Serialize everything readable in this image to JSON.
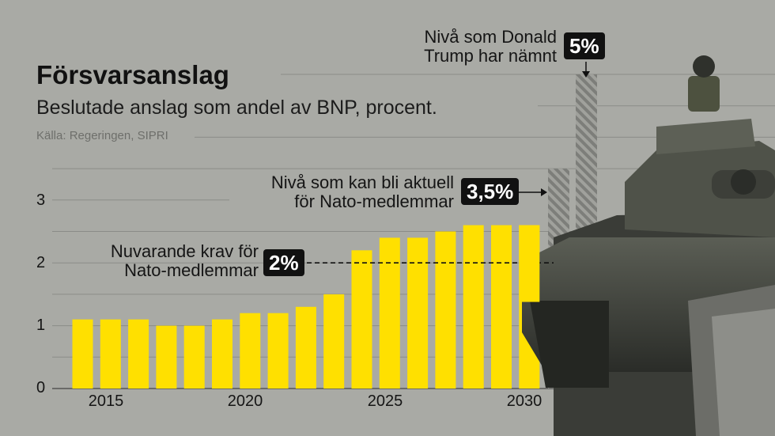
{
  "title": "Försvarsanslag",
  "subtitle": "Beslutade anslag som andel av BNP, procent.",
  "source": "Källa: Regeringen, SIPRI",
  "annotations": {
    "current": {
      "text_line1": "Nuvarande krav för",
      "text_line2": "Nato-medlemmar",
      "badge": "2%",
      "value": 2
    },
    "nato": {
      "text_line1": "Nivå som kan bli aktuell",
      "text_line2": "för Nato-medlemmar",
      "badge": "3,5%",
      "value": 3.5
    },
    "trump": {
      "text_line1": "Nivå som Donald",
      "text_line2": "Trump har nämnt",
      "badge": "5%",
      "value": 5
    }
  },
  "colors": {
    "bar": "#ffe000",
    "background": "#a9aaa5",
    "text": "#151515",
    "badge": "#111111",
    "hatch": "#7d7e7a"
  },
  "chart_data": {
    "type": "bar",
    "x": [
      2014,
      2015,
      2016,
      2017,
      2018,
      2019,
      2020,
      2021,
      2022,
      2023,
      2024,
      2025,
      2026,
      2027,
      2028,
      2029,
      2030
    ],
    "values": [
      1.1,
      1.1,
      1.1,
      1.0,
      1.0,
      1.1,
      1.2,
      1.2,
      1.3,
      1.5,
      2.2,
      2.4,
      2.4,
      2.5,
      2.6,
      2.6,
      2.6
    ],
    "xticks": [
      "2015",
      "2020",
      "2025",
      "2030"
    ],
    "yticks": [
      "0",
      "1",
      "2",
      "3"
    ],
    "ylim": [
      0,
      5
    ],
    "reference_lines": [
      2,
      3.5,
      5
    ]
  }
}
